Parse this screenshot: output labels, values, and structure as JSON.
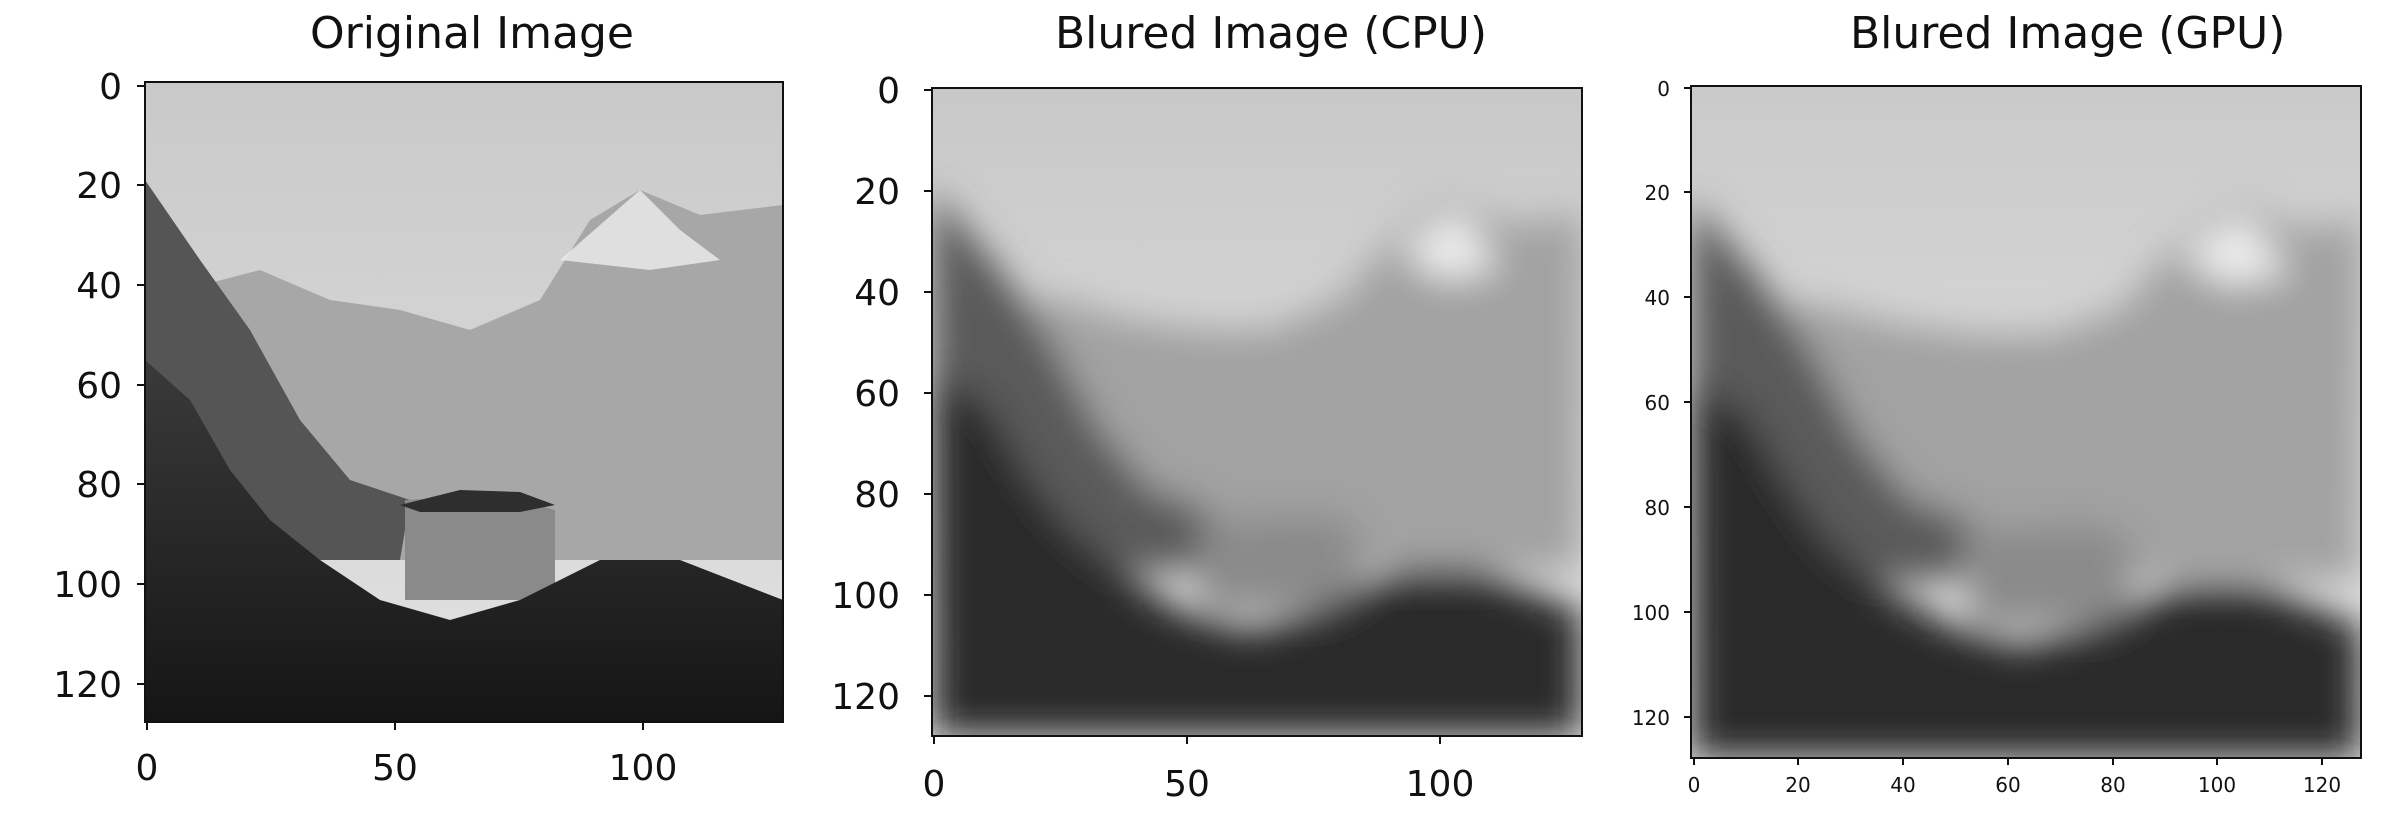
{
  "panels": [
    {
      "title": "Original Image",
      "x_ticks": [
        "0",
        "50",
        "100"
      ],
      "y_ticks": [
        "0",
        "20",
        "40",
        "60",
        "80",
        "100",
        "120"
      ],
      "blur": "none"
    },
    {
      "title": "Blured Image (CPU)",
      "x_ticks": [
        "0",
        "50",
        "100"
      ],
      "y_ticks": [
        "0",
        "20",
        "40",
        "60",
        "80",
        "100",
        "120"
      ],
      "blur": "strong"
    },
    {
      "title": "Blured Image (GPU)",
      "x_ticks": [
        "0",
        "20",
        "40",
        "60",
        "80",
        "100",
        "120"
      ],
      "y_ticks": [
        "0",
        "20",
        "40",
        "60",
        "80",
        "100",
        "120"
      ],
      "blur": "strong"
    }
  ],
  "image_description_colors": {
    "sky": "#d9d9d9",
    "mountain": "#9a9a9a",
    "forest": "#2a2a2a"
  }
}
